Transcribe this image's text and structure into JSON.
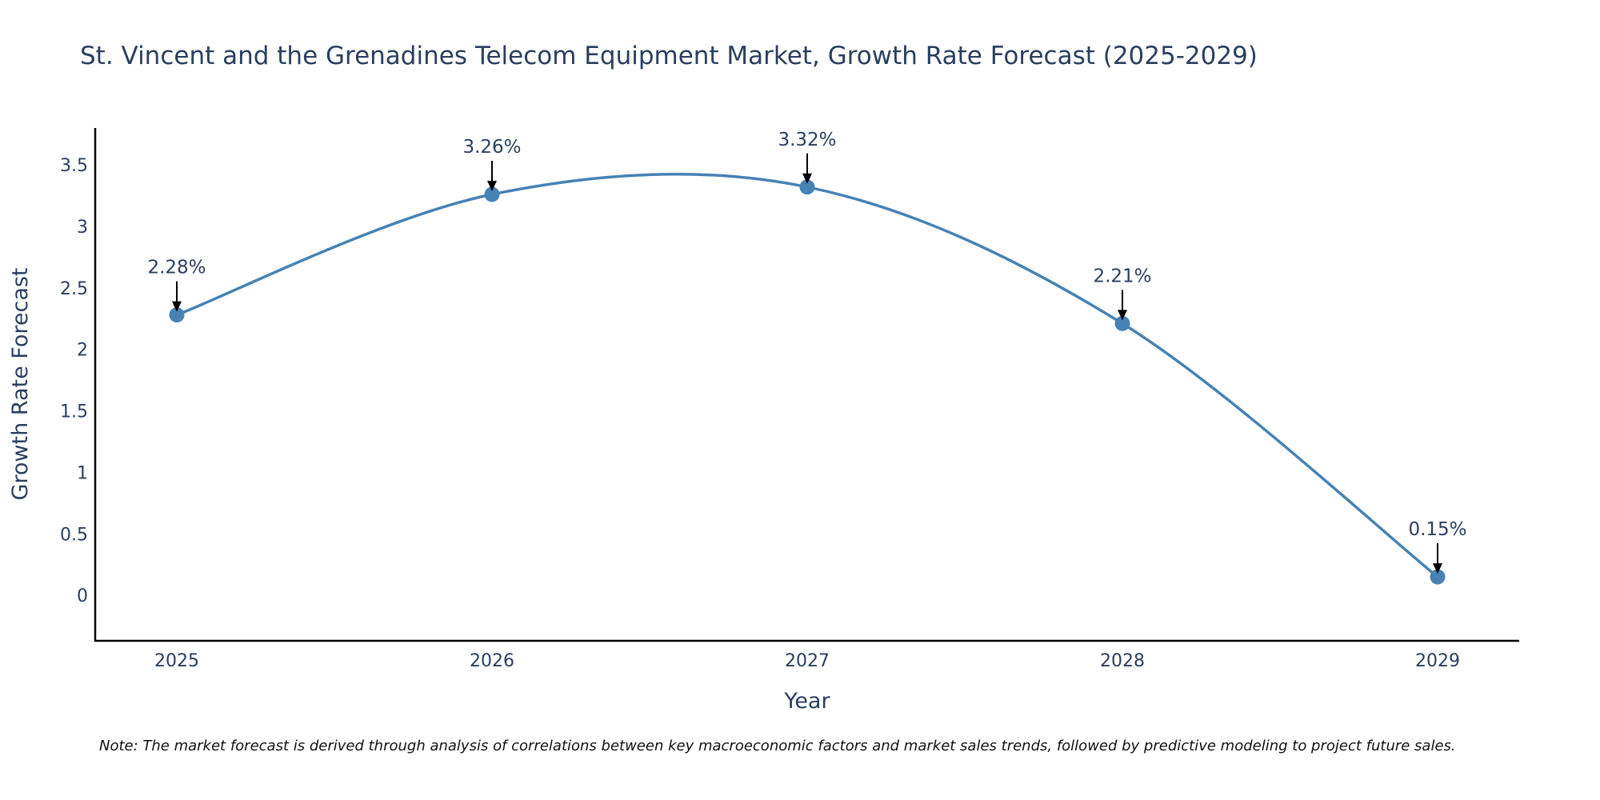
{
  "chart_data": {
    "type": "line",
    "title": "St. Vincent and the Grenadines Telecom Equipment Market, Growth Rate Forecast (2025-2029)",
    "xlabel": "Year",
    "ylabel": "Growth Rate Forecast",
    "categories": [
      "2025",
      "2026",
      "2027",
      "2028",
      "2029"
    ],
    "series": [
      {
        "name": "Growth Rate Forecast",
        "values": [
          2.28,
          3.26,
          3.32,
          2.21,
          0.15
        ],
        "color": "#4682b4"
      }
    ],
    "data_labels": [
      "2.28%",
      "3.26%",
      "3.32%",
      "2.21%",
      "0.15%"
    ],
    "ylim": [
      -0.37,
      3.8
    ],
    "yticks": [
      0,
      0.5,
      1,
      1.5,
      2,
      2.5,
      3,
      3.5
    ],
    "ytick_labels": [
      "0",
      "0.5",
      "1",
      "1.5",
      "2",
      "2.5",
      "3",
      "3.5"
    ],
    "grid": false,
    "line_shape": "spline",
    "note": "Note: The market forecast is derived through analysis of correlations between key macroeconomic factors and market sales trends, followed by predictive modeling to project future sales."
  },
  "colors": {
    "line": "#4682b4",
    "text": "#2a3f5f",
    "axis": "#000000",
    "arrow": "#000000"
  }
}
